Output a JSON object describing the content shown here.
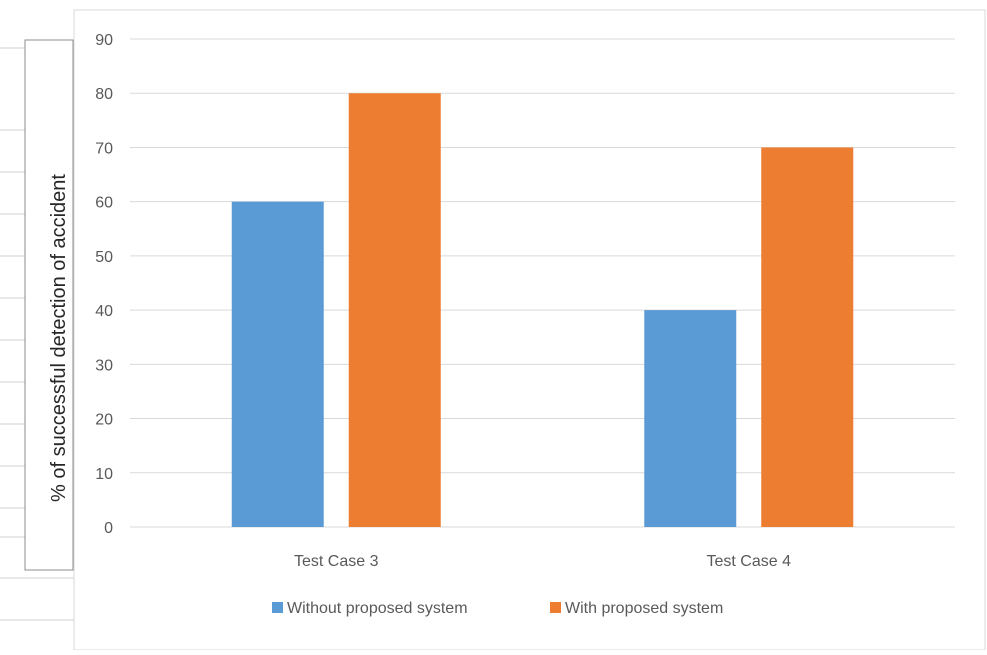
{
  "chart_data": {
    "type": "bar",
    "title": "",
    "xlabel": "",
    "ylabel": "% of successful detection of accident",
    "categories": [
      "Test Case 3",
      "Test Case 4"
    ],
    "series": [
      {
        "name": "Without proposed system",
        "values": [
          60,
          40
        ],
        "color": "#5b9bd5"
      },
      {
        "name": "With proposed system",
        "values": [
          80,
          70
        ],
        "color": "#ed7d31"
      }
    ],
    "ylim": [
      0,
      90
    ],
    "yticks": [
      0,
      10,
      20,
      30,
      40,
      50,
      60,
      70,
      80,
      90
    ],
    "grid": true,
    "legend_position": "bottom"
  },
  "colors": {
    "gridline": "#d9d9d9",
    "axis_text": "#595959",
    "spreadsheet_line": "#d0d0d0"
  }
}
